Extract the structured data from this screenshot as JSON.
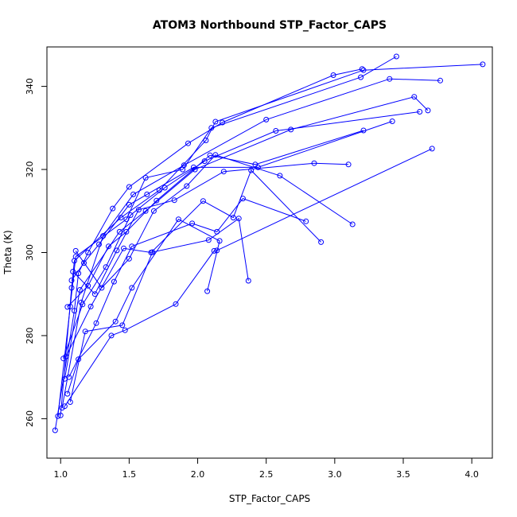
{
  "chart_data": {
    "type": "line",
    "title": "ATOM3 Northbound STP_Factor_CAPS",
    "xlabel": "STP_Factor_CAPS",
    "ylabel": "Theta (K)",
    "xlim": [
      0.9,
      4.15
    ],
    "ylim": [
      250.5,
      349.5
    ],
    "x_ticks": [
      1.0,
      1.5,
      2.0,
      2.5,
      3.0,
      3.5,
      4.0
    ],
    "x_tick_labels": [
      "1.0",
      "1.5",
      "2.0",
      "2.5",
      "3.0",
      "3.5",
      "4.0"
    ],
    "y_ticks": [
      260,
      280,
      300,
      320,
      340
    ],
    "y_tick_labels": [
      "260",
      "280",
      "300",
      "320",
      "340"
    ],
    "grid": false,
    "legend": "none",
    "color": "#0000ff",
    "marker": "open-circle",
    "series": [
      {
        "x": [
          0.96,
          1.1,
          1.13,
          1.2,
          1.38,
          1.5,
          1.93,
          2.18,
          2.99,
          3.2
        ],
        "y": [
          257.2,
          286.0,
          295.0,
          300.0,
          310.6,
          315.8,
          326.3,
          331.3,
          342.7,
          344.2
        ]
      },
      {
        "x": [
          0.98,
          1.07,
          1.11,
          1.48,
          1.62,
          1.89,
          2.1,
          3.19,
          3.45
        ],
        "y": [
          260.6,
          287.0,
          299.0,
          308.0,
          318.0,
          320.0,
          330.0,
          342.2,
          347.2
        ]
      },
      {
        "x": [
          1.0,
          1.08,
          1.1,
          1.44,
          1.72,
          2.06,
          2.13,
          3.21,
          4.08
        ],
        "y": [
          260.8,
          291.5,
          298.0,
          308.4,
          315.0,
          327.0,
          331.5,
          343.9,
          345.3
        ]
      },
      {
        "x": [
          1.01,
          1.15,
          1.31,
          1.53,
          1.9,
          2.5,
          3.4,
          3.77
        ],
        "y": [
          262.6,
          288.0,
          304.0,
          314.0,
          321.0,
          332.0,
          341.8,
          341.4
        ]
      },
      {
        "x": [
          1.03,
          1.14,
          1.43,
          1.62,
          1.98,
          2.68,
          3.58,
          3.68
        ],
        "y": [
          269.6,
          291.0,
          305.0,
          310.0,
          320.0,
          329.6,
          337.5,
          334.2
        ]
      },
      {
        "x": [
          1.02,
          1.16,
          1.33,
          1.51,
          1.76,
          2.05,
          2.57,
          3.62
        ],
        "y": [
          274.5,
          287.5,
          296.5,
          309.0,
          315.6,
          322.0,
          329.3,
          333.9
        ]
      },
      {
        "x": [
          1.05,
          1.2,
          1.35,
          1.48,
          1.7,
          2.09,
          2.42,
          3.21
        ],
        "y": [
          286.9,
          292.0,
          301.5,
          305.0,
          312.5,
          323.4,
          321.2,
          329.4
        ]
      },
      {
        "x": [
          1.08,
          1.17,
          1.28,
          1.5,
          1.63,
          1.97,
          2.44,
          3.42
        ],
        "y": [
          293.3,
          297.5,
          302.0,
          311.5,
          314.0,
          320.5,
          320.5,
          331.6
        ]
      },
      {
        "x": [
          1.09,
          1.25,
          1.41,
          1.57,
          1.83,
          2.19,
          2.85,
          3.1
        ],
        "y": [
          295.4,
          290.0,
          300.5,
          310.3,
          312.6,
          319.5,
          321.5,
          321.2
        ]
      },
      {
        "x": [
          1.11,
          1.3,
          1.5,
          1.68,
          1.92,
          2.13,
          2.6,
          3.13
        ],
        "y": [
          300.4,
          291.5,
          298.5,
          310.0,
          316.0,
          323.5,
          318.5,
          306.8
        ]
      },
      {
        "x": [
          1.04,
          1.22,
          1.46,
          1.66,
          2.04,
          2.26,
          2.39,
          2.9
        ],
        "y": [
          275.0,
          287.0,
          301.0,
          300.0,
          312.4,
          308.4,
          319.8,
          302.5
        ]
      },
      {
        "x": [
          1.06,
          1.26,
          1.39,
          1.52,
          1.96,
          2.14,
          2.33,
          2.79
        ],
        "y": [
          270.0,
          283.0,
          293.0,
          301.5,
          307.0,
          305.0,
          313.0,
          307.5
        ]
      },
      {
        "x": [
          1.07,
          1.18,
          1.45,
          1.67,
          2.08,
          2.3,
          2.37
        ],
        "y": [
          264.0,
          281.0,
          282.5,
          300.1,
          303.0,
          308.2,
          293.2
        ]
      },
      {
        "x": [
          1.05,
          1.13,
          1.4,
          1.52,
          1.86,
          2.16,
          2.07
        ],
        "y": [
          266.0,
          274.3,
          283.4,
          291.5,
          308.0,
          302.8,
          290.7
        ]
      },
      {
        "x": [
          1.03,
          1.37,
          1.47,
          1.84,
          2.12,
          2.14,
          3.71
        ],
        "y": [
          263.0,
          280.0,
          281.3,
          287.6,
          300.4,
          300.5,
          325.0
        ]
      }
    ]
  }
}
